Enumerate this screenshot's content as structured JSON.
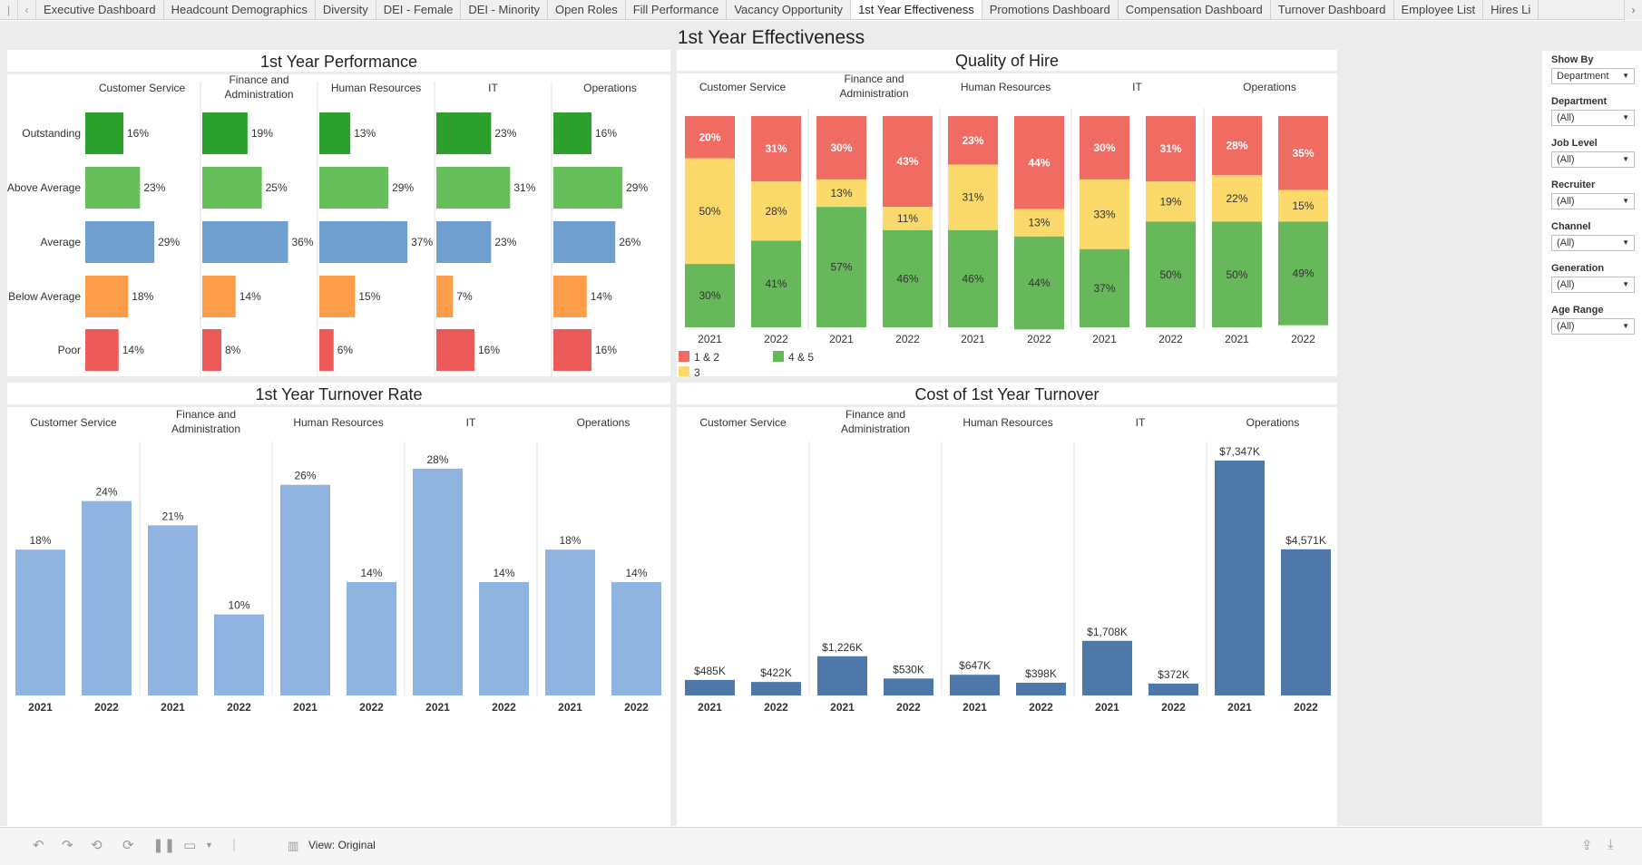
{
  "tabs": [
    {
      "label": "Executive Dashboard",
      "active": false
    },
    {
      "label": "Headcount Demographics",
      "active": false
    },
    {
      "label": "Diversity",
      "active": false
    },
    {
      "label": "DEI - Female",
      "active": false
    },
    {
      "label": "DEI - Minority",
      "active": false
    },
    {
      "label": "Open Roles",
      "active": false
    },
    {
      "label": "Fill Performance",
      "active": false
    },
    {
      "label": "Vacancy Opportunity",
      "active": false
    },
    {
      "label": "1st Year Effectiveness",
      "active": true
    },
    {
      "label": "Promotions Dashboard",
      "active": false
    },
    {
      "label": "Compensation Dashboard",
      "active": false
    },
    {
      "label": "Turnover Dashboard",
      "active": false
    },
    {
      "label": "Employee List",
      "active": false
    },
    {
      "label": "Hires Li",
      "active": false
    }
  ],
  "dashboard_title": "1st Year Effectiveness",
  "colors": {
    "outstanding": "#2ca02c",
    "above_average": "#66bf5a",
    "average": "#6e9fcf",
    "below_average": "#fd9d49",
    "poor": "#ec5a5a",
    "q_low": "#f06b62",
    "q_mid": "#fbd96a",
    "q_high": "#66b85a",
    "turnover_rate": "#8fb4e0",
    "turnover_cost": "#4d78a8"
  },
  "filters": [
    {
      "label": "Show By",
      "value": "Department"
    },
    {
      "label": "Department",
      "value": "(All)"
    },
    {
      "label": "Job Level",
      "value": "(All)"
    },
    {
      "label": "Recruiter",
      "value": "(All)"
    },
    {
      "label": "Channel",
      "value": "(All)"
    },
    {
      "label": "Generation",
      "value": "(All)"
    },
    {
      "label": "Age Range",
      "value": "(All)"
    }
  ],
  "toolbar": {
    "view_label": "View: Original"
  },
  "chart_data": [
    {
      "id": "performance",
      "type": "bar",
      "title": "1st Year Performance",
      "departments": [
        "Customer Service",
        "Finance and Administration",
        "Human Resources",
        "IT",
        "Operations"
      ],
      "department_lines": [
        [
          "Customer Service"
        ],
        [
          "Finance and",
          "Administration"
        ],
        [
          "Human Resources"
        ],
        [
          "IT"
        ],
        [
          "Operations"
        ]
      ],
      "categories": [
        "Outstanding",
        "Above Average",
        "Average",
        "Below Average",
        "Poor"
      ],
      "values": [
        [
          16,
          23,
          29,
          18,
          14
        ],
        [
          19,
          25,
          36,
          14,
          8
        ],
        [
          13,
          29,
          37,
          15,
          6
        ],
        [
          23,
          31,
          23,
          7,
          16
        ],
        [
          16,
          29,
          26,
          14,
          16
        ]
      ],
      "labels": [
        [
          "16%",
          "23%",
          "29%",
          "18%",
          "14%"
        ],
        [
          "19%",
          "25%",
          "36%",
          "14%",
          "8%"
        ],
        [
          "13%",
          "29%",
          "37%",
          "15%",
          "6%"
        ],
        [
          "23%",
          "31%",
          "23%",
          "7%",
          "16%"
        ],
        [
          "16%",
          "29%",
          "26%",
          "14%",
          "16%"
        ]
      ]
    },
    {
      "id": "quality",
      "type": "bar",
      "title": "Quality of Hire",
      "departments": [
        "Customer Service",
        "Finance and Administration",
        "Human Resources",
        "IT",
        "Operations"
      ],
      "department_lines": [
        [
          "Customer Service"
        ],
        [
          "Finance and",
          "Administration"
        ],
        [
          "Human Resources"
        ],
        [
          "IT"
        ],
        [
          "Operations"
        ]
      ],
      "years": [
        "2021",
        "2022"
      ],
      "series": [
        {
          "name": "1 & 2",
          "values": [
            [
              20,
              31
            ],
            [
              30,
              43
            ],
            [
              23,
              44
            ],
            [
              30,
              31
            ],
            [
              28,
              35
            ]
          ],
          "labels": [
            [
              "20%",
              "31%"
            ],
            [
              "30%",
              "43%"
            ],
            [
              "23%",
              "44%"
            ],
            [
              "30%",
              "31%"
            ],
            [
              "28%",
              "35%"
            ]
          ]
        },
        {
          "name": "3",
          "values": [
            [
              50,
              28
            ],
            [
              13,
              11
            ],
            [
              31,
              13
            ],
            [
              33,
              19
            ],
            [
              22,
              15
            ]
          ],
          "labels": [
            [
              "50%",
              "28%"
            ],
            [
              "13%",
              "11%"
            ],
            [
              "31%",
              "13%"
            ],
            [
              "33%",
              "19%"
            ],
            [
              "22%",
              "15%"
            ]
          ]
        },
        {
          "name": "4 & 5",
          "values": [
            [
              30,
              41
            ],
            [
              57,
              46
            ],
            [
              46,
              44
            ],
            [
              37,
              50
            ],
            [
              50,
              49
            ]
          ],
          "labels": [
            [
              "30%",
              "41%"
            ],
            [
              "57%",
              "46%"
            ],
            [
              "46%",
              "44%"
            ],
            [
              "37%",
              "50%"
            ],
            [
              "50%",
              "49%"
            ]
          ]
        }
      ]
    },
    {
      "id": "turnover_rate",
      "type": "bar",
      "title": "1st Year Turnover Rate",
      "departments": [
        "Customer Service",
        "Finance and Administration",
        "Human Resources",
        "IT",
        "Operations"
      ],
      "department_lines": [
        [
          "Customer Service"
        ],
        [
          "Finance and",
          "Administration"
        ],
        [
          "Human Resources"
        ],
        [
          "IT"
        ],
        [
          "Operations"
        ]
      ],
      "years": [
        "2021",
        "2022"
      ],
      "values": [
        [
          18,
          24
        ],
        [
          21,
          10
        ],
        [
          26,
          14
        ],
        [
          28,
          14
        ],
        [
          18,
          14
        ]
      ],
      "labels": [
        [
          "18%",
          "24%"
        ],
        [
          "21%",
          "10%"
        ],
        [
          "26%",
          "14%"
        ],
        [
          "28%",
          "14%"
        ],
        [
          "18%",
          "14%"
        ]
      ]
    },
    {
      "id": "turnover_cost",
      "type": "bar",
      "title": "Cost of 1st Year Turnover",
      "departments": [
        "Customer Service",
        "Finance and Administration",
        "Human Resources",
        "IT",
        "Operations"
      ],
      "department_lines": [
        [
          "Customer Service"
        ],
        [
          "Finance and",
          "Administration"
        ],
        [
          "Human Resources"
        ],
        [
          "IT"
        ],
        [
          "Operations"
        ]
      ],
      "years": [
        "2021",
        "2022"
      ],
      "values": [
        [
          485,
          422
        ],
        [
          1226,
          530
        ],
        [
          647,
          398
        ],
        [
          1708,
          372
        ],
        [
          7347,
          4571
        ]
      ],
      "labels": [
        [
          "$485K",
          "$422K"
        ],
        [
          "$1,226K",
          "$530K"
        ],
        [
          "$647K",
          "$398K"
        ],
        [
          "$1,708K",
          "$372K"
        ],
        [
          "$7,347K",
          "$4,571K"
        ]
      ]
    }
  ]
}
